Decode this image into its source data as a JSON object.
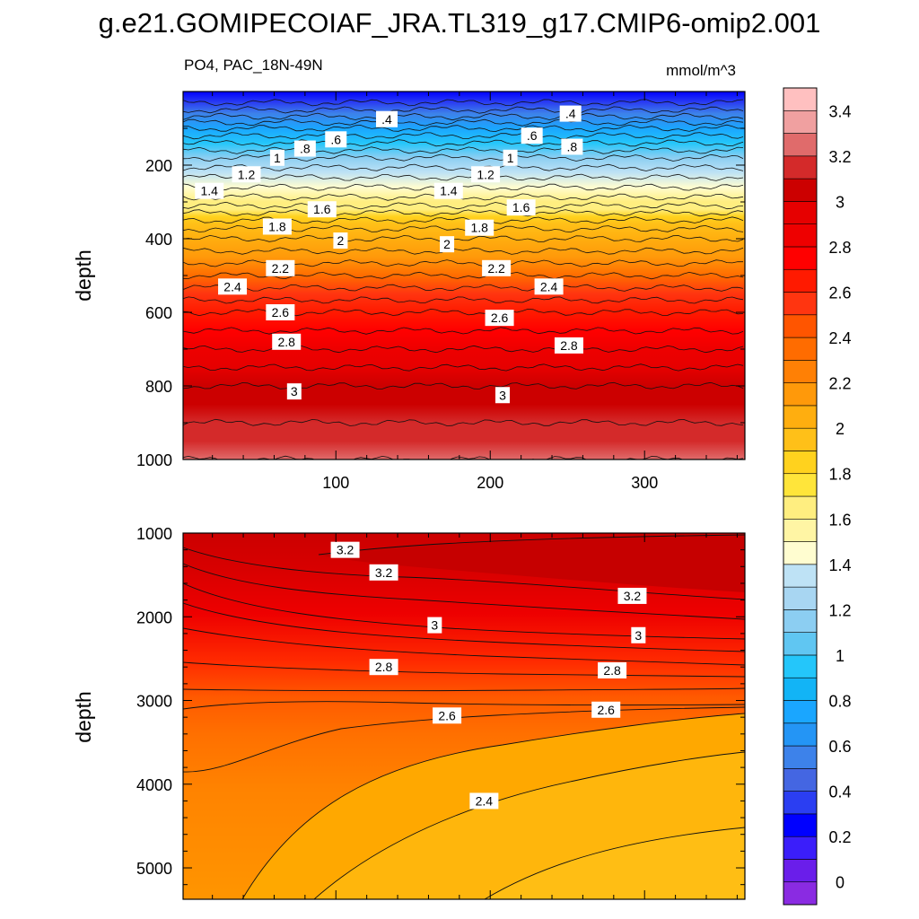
{
  "title": "g.e21.GOMIPECOIAF_JRA.TL319_g17.CMIP6-omip2.001",
  "subtitle_left": "PO4, PAC_18N-49N",
  "subtitle_right": "mmol/m^3",
  "colors": {
    "levels_ramp": [
      "#8a2be2",
      "#6a1eea",
      "#3b1efa",
      "#0000ff",
      "#2b3ef2",
      "#4466e2",
      "#3d82ea",
      "#2495f5",
      "#1aa6ff",
      "#12b4f6",
      "#24c6fa",
      "#60c6f2",
      "#8ccef2",
      "#a8d6f2",
      "#bee2f5",
      "#fffdd0",
      "#fff5a4",
      "#ffee80",
      "#ffe53a",
      "#ffd21e",
      "#ffc018",
      "#ffae0f",
      "#ff990a",
      "#ff8005",
      "#ff6c00",
      "#ff5500",
      "#ff3510",
      "#ff1a00",
      "#ff0000",
      "#ee0000",
      "#e60000",
      "#cc0000",
      "#d42a2a",
      "#e06b6b",
      "#f0a0a0",
      "#ffc0c0"
    ]
  },
  "chart_data": [
    {
      "type": "contour",
      "panel": "upper",
      "variable": "PO4",
      "region": "PAC_18N-49N",
      "units": "mmol/m^3",
      "xlabel": "",
      "ylabel": "depth",
      "xlim": [
        1,
        365
      ],
      "ylim": [
        1000,
        0
      ],
      "xticks": [
        100,
        200,
        300
      ],
      "xtick_labels": [
        "100",
        "200",
        "300"
      ],
      "yticks": [
        200,
        400,
        600,
        800,
        1000
      ],
      "ytick_labels": [
        "200",
        "400",
        "600",
        "800",
        "1000"
      ],
      "profile_depths": [
        0,
        30,
        60,
        100,
        140,
        180,
        220,
        260,
        300,
        320,
        340,
        360,
        400,
        450,
        500,
        550,
        600,
        650,
        700,
        750,
        800,
        850,
        900,
        950,
        1000
      ],
      "profile_values": [
        0.2,
        0.3,
        0.45,
        0.7,
        0.9,
        1.1,
        1.25,
        1.4,
        1.55,
        1.65,
        1.75,
        1.85,
        2.0,
        2.15,
        2.3,
        2.45,
        2.6,
        2.7,
        2.8,
        2.9,
        3.0,
        3.05,
        3.1,
        3.15,
        3.2
      ],
      "contour_labels": [
        {
          "text": ".4",
          "x": 133,
          "y": 75
        },
        {
          "text": ".4",
          "x": 252,
          "y": 60
        },
        {
          "text": ".6",
          "x": 100,
          "y": 130
        },
        {
          "text": ".6",
          "x": 227,
          "y": 120
        },
        {
          "text": ".8",
          "x": 80,
          "y": 155
        },
        {
          "text": ".8",
          "x": 253,
          "y": 150
        },
        {
          "text": "1",
          "x": 62,
          "y": 180
        },
        {
          "text": "1",
          "x": 213,
          "y": 180
        },
        {
          "text": "1.2",
          "x": 42,
          "y": 225
        },
        {
          "text": "1.2",
          "x": 197,
          "y": 225
        },
        {
          "text": "1.4",
          "x": 18,
          "y": 270
        },
        {
          "text": "1.4",
          "x": 173,
          "y": 270
        },
        {
          "text": "1.6",
          "x": 91,
          "y": 320
        },
        {
          "text": "1.6",
          "x": 220,
          "y": 315
        },
        {
          "text": "1.8",
          "x": 62,
          "y": 367
        },
        {
          "text": "1.8",
          "x": 193,
          "y": 370
        },
        {
          "text": "2",
          "x": 103,
          "y": 405
        },
        {
          "text": "2",
          "x": 172,
          "y": 415
        },
        {
          "text": "2.2",
          "x": 64,
          "y": 480
        },
        {
          "text": "2.2",
          "x": 204,
          "y": 480
        },
        {
          "text": "2.4",
          "x": 33,
          "y": 530
        },
        {
          "text": "2.4",
          "x": 238,
          "y": 530
        },
        {
          "text": "2.6",
          "x": 64,
          "y": 600
        },
        {
          "text": "2.6",
          "x": 206,
          "y": 615
        },
        {
          "text": "2.8",
          "x": 68,
          "y": 680
        },
        {
          "text": "2.8",
          "x": 251,
          "y": 690
        },
        {
          "text": "3",
          "x": 73,
          "y": 815
        },
        {
          "text": "3",
          "x": 208,
          "y": 825
        }
      ]
    },
    {
      "type": "contour",
      "panel": "lower",
      "variable": "PO4",
      "region": "PAC_18N-49N",
      "units": "mmol/m^3",
      "xlabel": "",
      "ylabel": "depth",
      "xlim": [
        1,
        365
      ],
      "ylim": [
        5375,
        1000
      ],
      "xticks": [
        100,
        200,
        300
      ],
      "yticks": [
        1000,
        2000,
        3000,
        4000,
        5000
      ],
      "ytick_labels": [
        "1000",
        "2000",
        "3000",
        "4000",
        "5000"
      ],
      "contour_labels": [
        {
          "text": "3.2",
          "x": 106,
          "y": 1200
        },
        {
          "text": "3.2",
          "x": 131,
          "y": 1470
        },
        {
          "text": "3.2",
          "x": 292,
          "y": 1750
        },
        {
          "text": "3",
          "x": 164,
          "y": 2100
        },
        {
          "text": "3",
          "x": 296,
          "y": 2220
        },
        {
          "text": "2.8",
          "x": 131,
          "y": 2600
        },
        {
          "text": "2.8",
          "x": 279,
          "y": 2640
        },
        {
          "text": "2.6",
          "x": 172,
          "y": 3180
        },
        {
          "text": "2.6",
          "x": 275,
          "y": 3110
        },
        {
          "text": "2.4",
          "x": 196,
          "y": 4200
        }
      ]
    }
  ],
  "colorbar": {
    "labels": [
      "0",
      "0.2",
      "0.4",
      "0.6",
      "0.8",
      "1",
      "1.2",
      "1.4",
      "1.6",
      "1.8",
      "2",
      "2.2",
      "2.4",
      "2.6",
      "2.8",
      "3",
      "3.2",
      "3.4"
    ]
  }
}
